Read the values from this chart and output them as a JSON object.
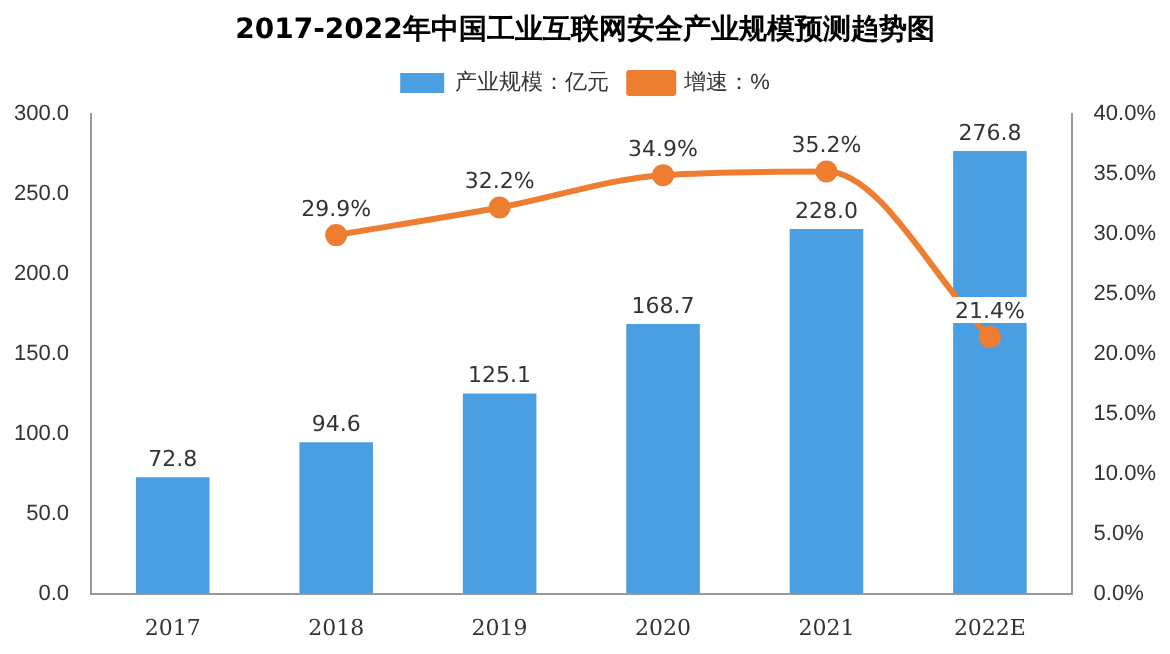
{
  "chart_data": {
    "type": "bar",
    "title": "2017-2022年中国工业互联网安全产业规模预测趋势图",
    "categories": [
      "2017",
      "2018",
      "2019",
      "2020",
      "2021",
      "2022E"
    ],
    "series": [
      {
        "name": "产业规模：亿元",
        "color": "#4a9fe3",
        "values": [
          72.8,
          94.6,
          125.1,
          168.7,
          228.0,
          276.8
        ],
        "value_labels": [
          "72.8",
          "94.6",
          "125.1",
          "168.7",
          "228.0",
          "276.8"
        ]
      },
      {
        "name": "增速：%",
        "type": "line",
        "axis": "y2",
        "color": "#ed7d31",
        "values": [
          null,
          29.9,
          32.2,
          34.9,
          35.2,
          21.4
        ],
        "value_labels": [
          null,
          "29.9%",
          "32.2%",
          "34.9%",
          "35.2%",
          "21.4%"
        ]
      }
    ],
    "ylim": [
      0,
      300
    ],
    "yticks": [
      {
        "value": 0,
        "label": "0.0"
      },
      {
        "value": 50,
        "label": "50.0"
      },
      {
        "value": 100,
        "label": "100.0"
      },
      {
        "value": 150,
        "label": "150.0"
      },
      {
        "value": 200,
        "label": "200.0"
      },
      {
        "value": 250,
        "label": "250.0"
      },
      {
        "value": 300,
        "label": "300.0"
      }
    ],
    "y2lim": [
      0,
      40
    ],
    "y2ticks": [
      {
        "value": 0,
        "label": "0.0%"
      },
      {
        "value": 5,
        "label": "5.0%"
      },
      {
        "value": 10,
        "label": "10.0%"
      },
      {
        "value": 15,
        "label": "15.0%"
      },
      {
        "value": 20,
        "label": "20.0%"
      },
      {
        "value": 25,
        "label": "25.0%"
      },
      {
        "value": 30,
        "label": "30.0%"
      },
      {
        "value": 35,
        "label": "35.0%"
      },
      {
        "value": 40,
        "label": "40.0%"
      }
    ],
    "grid": false,
    "legend": "top",
    "marker": "circle",
    "line_style": "solid"
  }
}
